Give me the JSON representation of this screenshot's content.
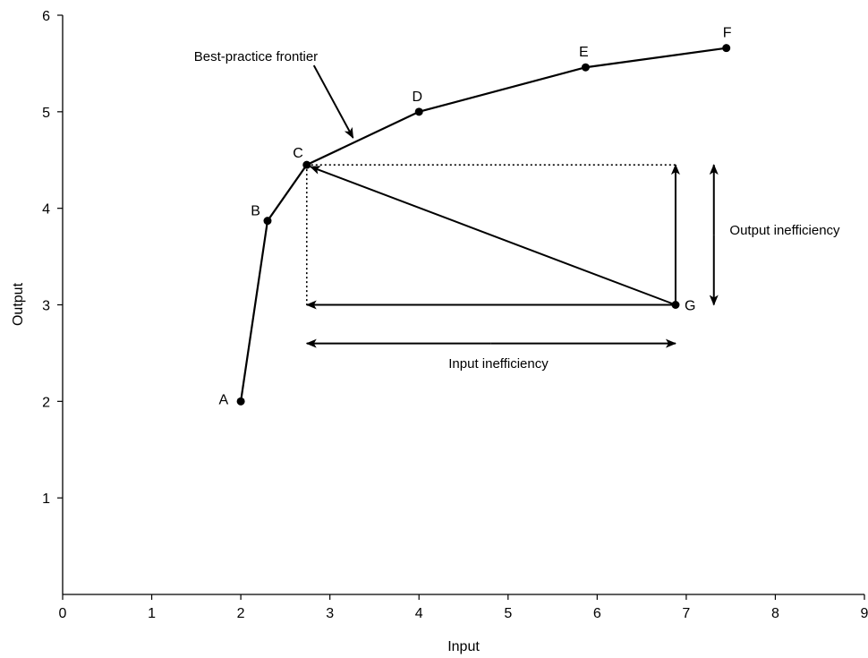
{
  "chart_data": {
    "type": "line",
    "xlabel": "Input",
    "ylabel": "Output",
    "xlim": [
      0,
      9
    ],
    "ylim": [
      0,
      6
    ],
    "x_ticks": [
      "0",
      "1",
      "2",
      "3",
      "4",
      "5",
      "6",
      "7",
      "8",
      "9"
    ],
    "y_ticks": [
      "1",
      "2",
      "3",
      "4",
      "5",
      "6"
    ],
    "grid": false,
    "frontier": [
      {
        "label": "A",
        "x": 2.0,
        "y": 2.0
      },
      {
        "label": "B",
        "x": 2.3,
        "y": 3.87
      },
      {
        "label": "C",
        "x": 2.74,
        "y": 4.45
      },
      {
        "label": "D",
        "x": 4.0,
        "y": 5.0
      },
      {
        "label": "E",
        "x": 5.87,
        "y": 5.46
      },
      {
        "label": "F",
        "x": 7.45,
        "y": 5.66
      }
    ],
    "inefficient_point": {
      "label": "G",
      "x": 6.88,
      "y": 3.0
    },
    "annotations": {
      "frontier_label": "Best-practice frontier",
      "input_inefficiency": "Input inefficiency",
      "output_inefficiency": "Output inefficiency"
    }
  },
  "colors": {
    "ink": "#000000",
    "background": "#ffffff"
  }
}
